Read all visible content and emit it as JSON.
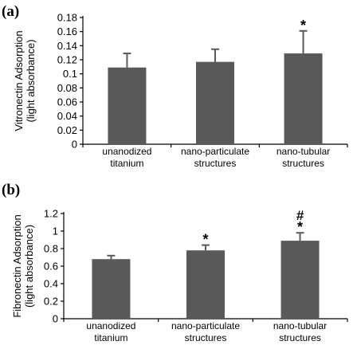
{
  "chart_data": [
    {
      "type": "bar",
      "panel_label": "(a)",
      "categories": [
        [
          "unanodized",
          "titanium"
        ],
        [
          "nano-particulate",
          "structures"
        ],
        [
          "nano-tubular",
          "structures"
        ]
      ],
      "values": [
        0.109,
        0.117,
        0.129
      ],
      "errors": [
        0.02,
        0.018,
        0.032
      ],
      "annotations": [
        "",
        "",
        "*"
      ],
      "ylabel": [
        "Vitronectin Adsorption",
        "(light absorbance)"
      ],
      "ylim": [
        0,
        0.18
      ],
      "yticks": [
        0,
        0.02,
        0.04,
        0.06,
        0.08,
        0.1,
        0.12,
        0.14,
        0.16,
        0.18
      ],
      "ytick_labels": [
        "0",
        "0.02",
        "0.04",
        "0.06",
        "0.08",
        "0.1",
        "0.12",
        "0.14",
        "0.16",
        "0.18"
      ],
      "grid": false
    },
    {
      "type": "bar",
      "panel_label": "(b)",
      "categories": [
        [
          "unanodized",
          "titanium"
        ],
        [
          "nano-particulate",
          "structures"
        ],
        [
          "nano-tubular",
          "structures"
        ]
      ],
      "values": [
        0.68,
        0.78,
        0.89
      ],
      "errors": [
        0.04,
        0.06,
        0.09
      ],
      "annotations": [
        "",
        "*",
        "*#"
      ],
      "ylabel": [
        "Fibronectin Adsorption",
        "(light absorbance)"
      ],
      "ylim": [
        0,
        1.2
      ],
      "yticks": [
        0,
        0.2,
        0.4,
        0.6,
        0.8,
        1,
        1.2
      ],
      "ytick_labels": [
        "0",
        "0.2",
        "0.4",
        "0.6",
        "0.8",
        "1",
        "1.2"
      ],
      "grid": false
    }
  ]
}
